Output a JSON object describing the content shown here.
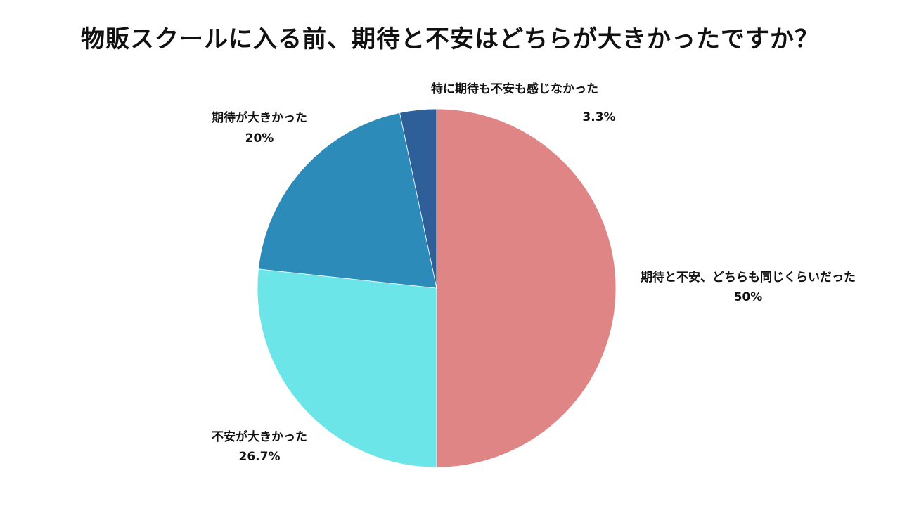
{
  "chart_data": {
    "type": "pie",
    "title": "物販スクールに入る前、期待と不安はどちらが大きかったですか？",
    "slices": [
      {
        "label": "期待と不安、どちらも同じくらいだった",
        "value": 50,
        "value_label": "50%",
        "color": "#E08585"
      },
      {
        "label": "不安が大きかった",
        "value": 26.7,
        "value_label": "26.7%",
        "color": "#6CE5E8"
      },
      {
        "label": "期待が大きかった",
        "value": 20,
        "value_label": "20%",
        "color": "#2D8BBA"
      },
      {
        "label": "特に期待も不安も感じなかった",
        "value": 3.3,
        "value_label": "3.3%",
        "color": "#2F5F98"
      }
    ],
    "start_angle": "12 o'clock",
    "direction": "clockwise"
  }
}
